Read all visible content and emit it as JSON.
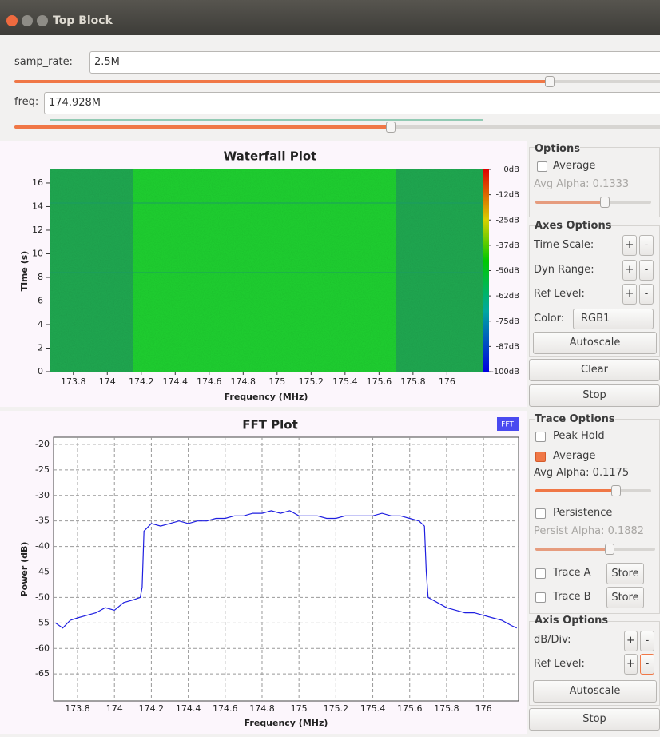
{
  "window": {
    "title": "Top Block"
  },
  "controls": [
    {
      "label": "samp_rate:",
      "value": "2.5M"
    },
    {
      "label": "freq:",
      "value": "174.928M"
    }
  ],
  "waterfall": {
    "type": "heatmap",
    "title": "Waterfall Plot",
    "xlabel": "Frequency (MHz)",
    "ylabel": "Time (s)",
    "xlim": [
      173.66,
      176.21
    ],
    "ylim": [
      0,
      17.15
    ],
    "xticks": [
      173.8,
      174,
      174.2,
      174.4,
      174.6,
      174.8,
      175,
      175.2,
      175.4,
      175.6,
      175.8,
      176
    ],
    "yticks": [
      0,
      2,
      4,
      6,
      8,
      10,
      12,
      14,
      16
    ],
    "signal_band": [
      174.15,
      175.7
    ],
    "clim": [
      -100,
      0
    ],
    "colorbar_ticks": [
      {
        "value": 0,
        "label": "0dB"
      },
      {
        "value": -12.5,
        "label": "-12dB"
      },
      {
        "value": -25,
        "label": "-25dB"
      },
      {
        "value": -37.5,
        "label": "-37dB"
      },
      {
        "value": -50,
        "label": "-50dB"
      },
      {
        "value": -62.5,
        "label": "-62dB"
      },
      {
        "value": -75,
        "label": "-75dB"
      },
      {
        "value": -87.5,
        "label": "-87dB"
      },
      {
        "value": -100,
        "label": "-100dB"
      }
    ]
  },
  "waterfall_options": {
    "heading": "Options",
    "average": "Average",
    "avg_alpha": "Avg Alpha: 0.1333",
    "axes_heading": "Axes Options",
    "time_scale": "Time Scale:",
    "dyn_range": "Dyn Range:",
    "ref_level": "Ref Level:",
    "color": "Color:",
    "color_value": "RGB1",
    "autoscale": "Autoscale",
    "clear": "Clear",
    "stop": "Stop",
    "plus": "+",
    "minus": "-"
  },
  "fft": {
    "type": "line",
    "title": "FFT Plot",
    "legend": "FFT",
    "color": "#1f1fe0",
    "xlabel": "Frequency (MHz)",
    "ylabel": "Power (dB)",
    "xlim": [
      173.67,
      176.19
    ],
    "ylim": [
      -70.3,
      -18.6
    ],
    "xticks": [
      173.8,
      174,
      174.2,
      174.4,
      174.6,
      174.8,
      175,
      175.2,
      175.4,
      175.6,
      175.8,
      176
    ],
    "yticks": [
      -20,
      -25,
      -30,
      -35,
      -40,
      -45,
      -50,
      -55,
      -60,
      -65
    ],
    "grid": true,
    "x": [
      173.68,
      173.72,
      173.76,
      173.8,
      173.85,
      173.9,
      173.95,
      174.0,
      174.05,
      174.1,
      174.14,
      174.15,
      174.16,
      174.2,
      174.25,
      174.3,
      174.35,
      174.4,
      174.45,
      174.5,
      174.55,
      174.6,
      174.65,
      174.7,
      174.75,
      174.8,
      174.85,
      174.9,
      174.95,
      175.0,
      175.05,
      175.1,
      175.15,
      175.2,
      175.25,
      175.3,
      175.35,
      175.4,
      175.45,
      175.5,
      175.55,
      175.6,
      175.65,
      175.68,
      175.69,
      175.7,
      175.75,
      175.8,
      175.85,
      175.9,
      175.95,
      176.0,
      176.05,
      176.1,
      176.15,
      176.18
    ],
    "values": [
      -55,
      -56,
      -54.5,
      -54,
      -53.5,
      -53,
      -52,
      -52.5,
      -51,
      -50.5,
      -50,
      -48,
      -37,
      -35.5,
      -36,
      -35.5,
      -35,
      -35.5,
      -35,
      -35,
      -34.5,
      -34.5,
      -34,
      -34,
      -33.5,
      -33.5,
      -33,
      -33.5,
      -33,
      -34,
      -34,
      -34,
      -34.5,
      -34.5,
      -34,
      -34,
      -34,
      -34,
      -33.5,
      -34,
      -34,
      -34.5,
      -35,
      -36,
      -45,
      -50,
      -51,
      -52,
      -52.5,
      -53,
      -53,
      -53.5,
      -54,
      -54.5,
      -55.5,
      -56
    ]
  },
  "trace_options": {
    "heading": "Trace Options",
    "peak_hold": "Peak Hold",
    "average": "Average",
    "avg_alpha": "Avg Alpha: 0.1175",
    "persistence": "Persistence",
    "persist_alpha": "Persist Alpha: 0.1882",
    "trace_a": "Trace A",
    "trace_b": "Trace B",
    "store": "Store",
    "axis_heading": "Axis Options",
    "db_div": "dB/Div:",
    "ref_level": "Ref Level:",
    "autoscale": "Autoscale",
    "stop": "Stop",
    "plus": "+",
    "minus": "-"
  }
}
